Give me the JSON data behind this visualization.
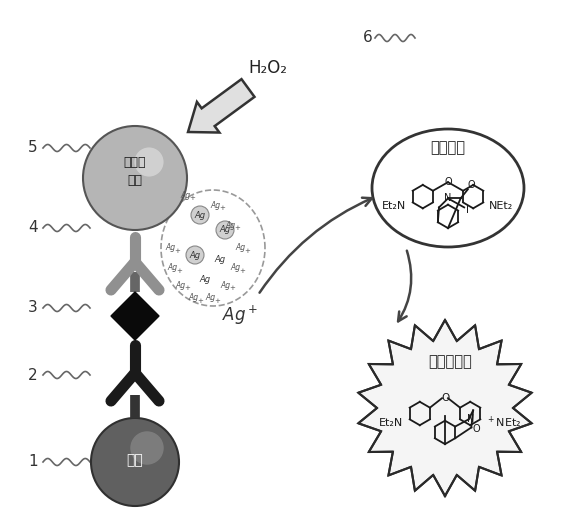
{
  "bg_color": "#ffffff",
  "bead_label": "磁珠",
  "nanoparticle_label": "银纳米\n颗粒",
  "no_fluor_label": "没有荧光",
  "strong_fluor_label": "有强的荧光",
  "h2o2_label": "H₂O₂",
  "ag_ion_label": "Ag⁺",
  "fig_w": 5.76,
  "fig_h": 5.15,
  "dpi": 100
}
